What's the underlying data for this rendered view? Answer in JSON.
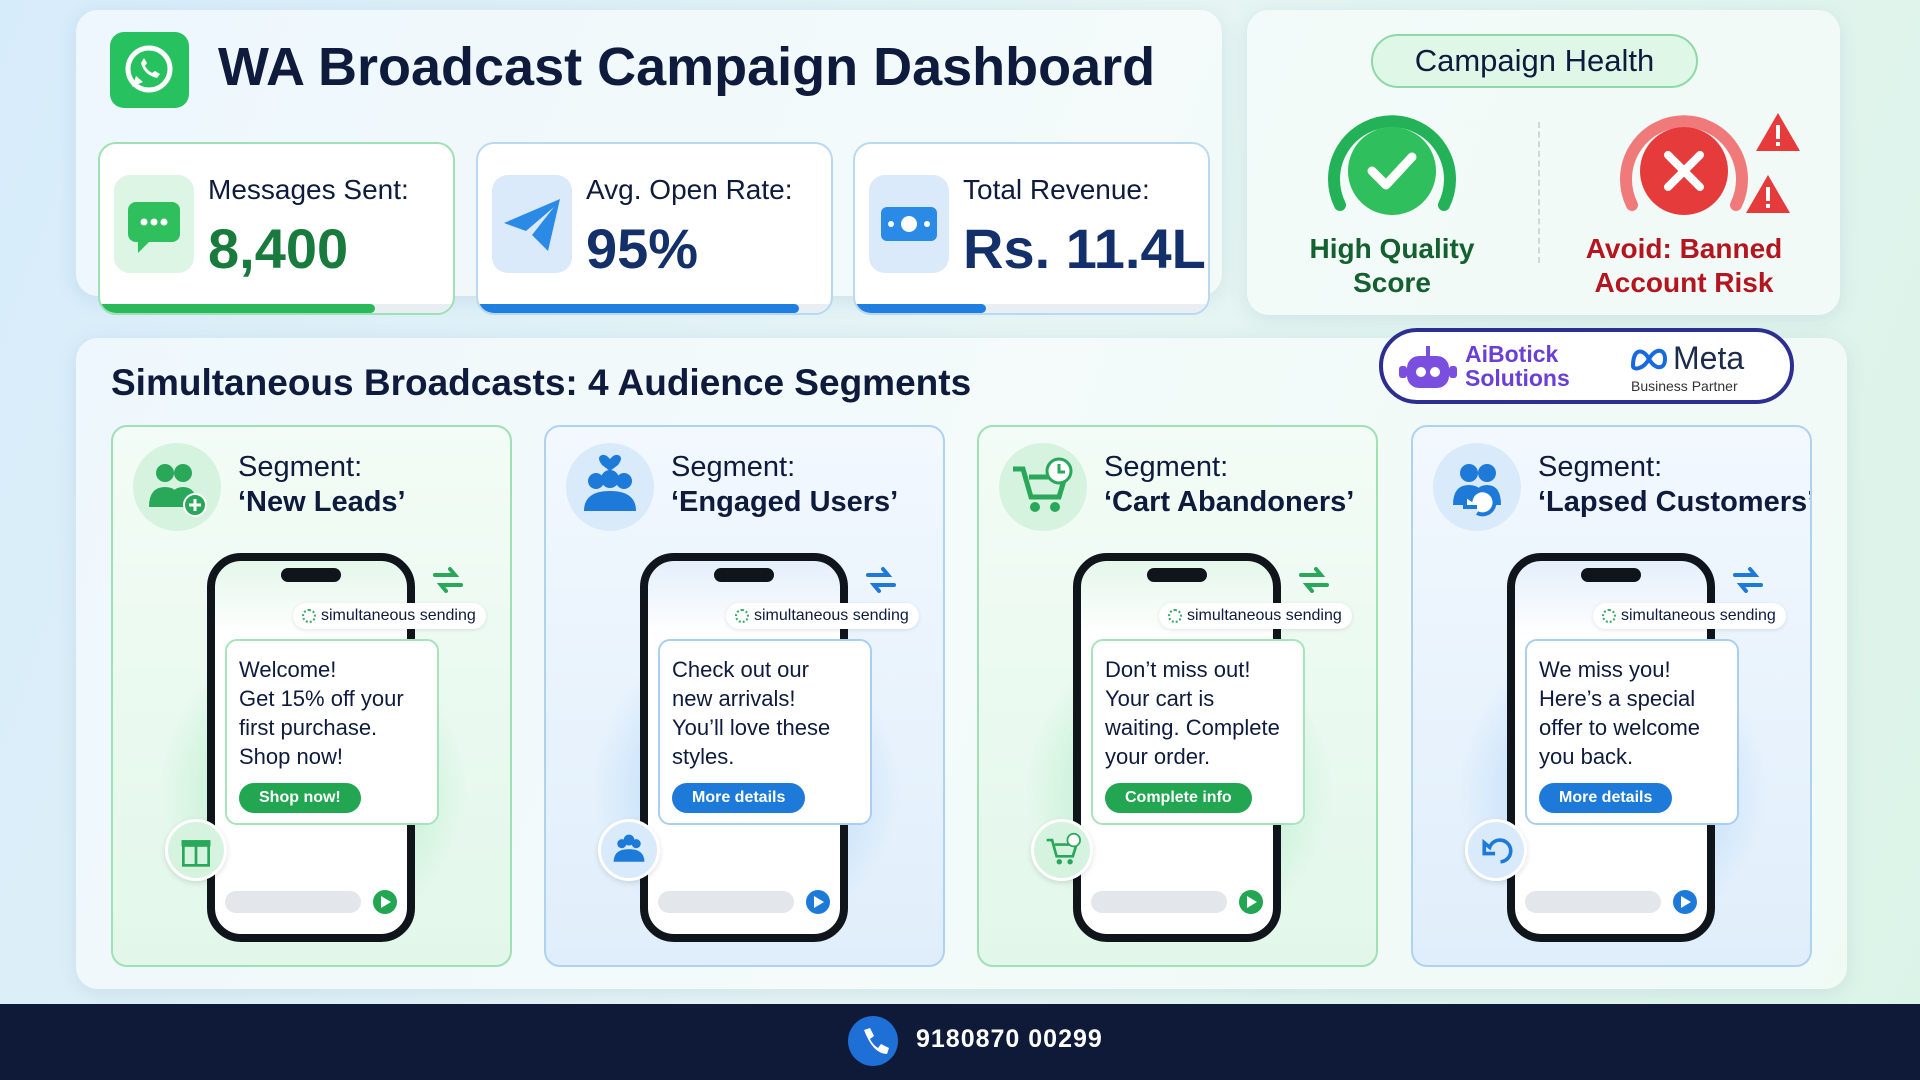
{
  "header": {
    "title": "WA Broadcast Campaign Dashboard"
  },
  "stats": [
    {
      "label": "Messages Sent:",
      "value": "8,400"
    },
    {
      "label": "Avg. Open Rate:",
      "value": "95%"
    },
    {
      "label": "Total Revenue:",
      "value": "Rs. 11.4L"
    }
  ],
  "health": {
    "title": "Campaign Health",
    "items": [
      {
        "label": [
          "High Quality",
          "Score"
        ]
      },
      {
        "label": [
          "Avoid: Banned",
          "Account Risk"
        ]
      }
    ]
  },
  "partners": {
    "company": [
      "AiBotick",
      "Solutions"
    ],
    "meta": "Meta",
    "meta_sub": "Business Partner"
  },
  "segments": {
    "title": "Simultaneous Broadcasts: 4 Audience Segments",
    "items": [
      {
        "label": "Segment:",
        "name": "‘New Leads’",
        "status": "simultaneous sending",
        "message": [
          "Welcome!",
          "Get 15% off your",
          "first purchase.",
          "Shop now!"
        ],
        "button": "Shop now!"
      },
      {
        "label": "Segment:",
        "name": "‘Engaged Users’",
        "status": "simultaneous sending",
        "message": [
          "Check out our",
          "new arrivals!",
          "You’ll love these",
          "styles."
        ],
        "button": "More details"
      },
      {
        "label": "Segment:",
        "name": "‘Cart Abandoners’",
        "status": "simultaneous sending",
        "message": [
          "Don’t miss out!",
          "Your cart is",
          "waiting. Complete",
          "your order."
        ],
        "button": "Complete info"
      },
      {
        "label": "Segment:",
        "name": "‘Lapsed Customers’",
        "status": "simultaneous sending",
        "message": [
          "We miss you!",
          "Here’s a special",
          "offer to welcome",
          "you back."
        ],
        "button": "More details"
      }
    ]
  },
  "footer": {
    "phone": "9180870 00299"
  }
}
